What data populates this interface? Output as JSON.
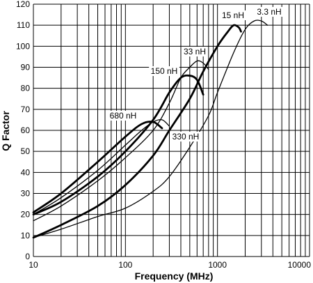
{
  "chart_data": {
    "type": "line",
    "title": "",
    "xlabel": "Frequency (MHz)",
    "ylabel": "Q Factor",
    "x_scale": "log",
    "xlim": [
      10,
      10000
    ],
    "ylim": [
      0,
      120
    ],
    "grid": true,
    "legend": "none",
    "x_tick_labels": [
      "10",
      "100",
      "1000",
      "10000"
    ],
    "x_tick_values": [
      10,
      100,
      1000,
      10000
    ],
    "y_tick_values": [
      0,
      10,
      20,
      30,
      40,
      50,
      60,
      70,
      80,
      90,
      100,
      110,
      120
    ],
    "series": [
      {
        "name": "3.3 nH",
        "weight": "thin",
        "x": [
          10,
          20,
          50,
          100,
          200,
          300,
          500,
          800,
          1000,
          1500,
          2000,
          2500,
          3000,
          3500
        ],
        "y": [
          9,
          13,
          19,
          23,
          31,
          38,
          52,
          67,
          78,
          97,
          108,
          112,
          112,
          110
        ]
      },
      {
        "name": "15 nH",
        "weight": "thick",
        "x": [
          10,
          20,
          50,
          100,
          200,
          300,
          500,
          700,
          1000,
          1300,
          1500,
          1700,
          1800
        ],
        "y": [
          9,
          15,
          24,
          34,
          48,
          60,
          75,
          88,
          100,
          107,
          110,
          109,
          107
        ]
      },
      {
        "name": "33 nH",
        "weight": "thin",
        "x": [
          10,
          20,
          50,
          100,
          200,
          300,
          400,
          500,
          600,
          700,
          800
        ],
        "y": [
          17,
          24,
          36,
          47,
          60,
          73,
          85,
          90,
          93,
          92,
          89
        ]
      },
      {
        "name": "150 nH",
        "weight": "thick",
        "x": [
          10,
          20,
          50,
          100,
          200,
          300,
          400,
          500,
          600,
          700
        ],
        "y": [
          20,
          26,
          38,
          50,
          65,
          78,
          85,
          86,
          84,
          77
        ]
      },
      {
        "name": "330 nH",
        "weight": "thin",
        "x": [
          10,
          20,
          50,
          100,
          150,
          200,
          250,
          300
        ],
        "y": [
          20,
          28,
          41,
          53,
          60,
          64,
          65,
          62
        ]
      },
      {
        "name": "680 nH",
        "weight": "thick",
        "x": [
          10,
          20,
          50,
          100,
          150,
          200,
          250
        ],
        "y": [
          21,
          30,
          45,
          57,
          63,
          64,
          61
        ]
      }
    ]
  }
}
